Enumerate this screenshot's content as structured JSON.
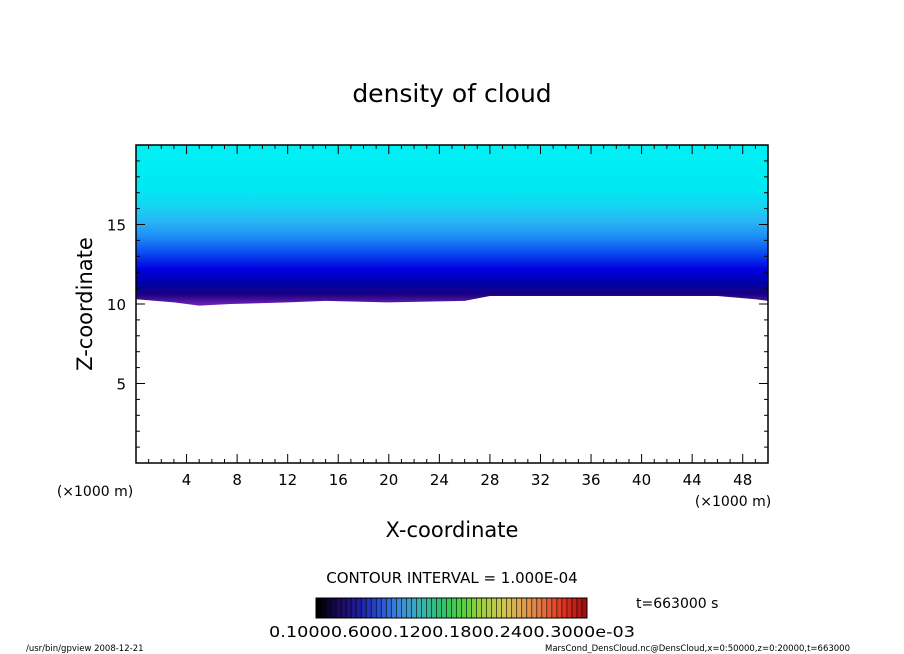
{
  "chart_data": {
    "type": "heatmap",
    "title": "density of cloud",
    "xlabel": "X-coordinate",
    "ylabel": "Z-coordinate",
    "x_unit": "(×1000 m)",
    "y_unit": "(×1000 m)",
    "xlim": [
      0,
      50
    ],
    "ylim": [
      0,
      20
    ],
    "x_ticks": [
      4,
      8,
      12,
      16,
      20,
      24,
      28,
      32,
      36,
      40,
      44,
      48
    ],
    "x_tick_labels": [
      "4",
      "8",
      "12",
      "16",
      "20",
      "24",
      "28",
      "32",
      "36",
      "40",
      "44",
      "48"
    ],
    "y_ticks": [
      5,
      10,
      15
    ],
    "y_tick_labels": [
      "5",
      "10",
      "15"
    ],
    "cloud_base": [
      {
        "x": 0,
        "z": 10.3
      },
      {
        "x": 3,
        "z": 10.1
      },
      {
        "x": 5,
        "z": 9.9
      },
      {
        "x": 7.5,
        "z": 10.0
      },
      {
        "x": 12,
        "z": 10.1
      },
      {
        "x": 15,
        "z": 10.2
      },
      {
        "x": 20,
        "z": 10.1
      },
      {
        "x": 26,
        "z": 10.2
      },
      {
        "x": 28,
        "z": 10.5
      },
      {
        "x": 40,
        "z": 10.5
      },
      {
        "x": 46,
        "z": 10.5
      },
      {
        "x": 49,
        "z": 10.3
      },
      {
        "x": 50,
        "z": 10.2
      }
    ],
    "profile": [
      {
        "z": 10.0,
        "color": "#6a1fb0"
      },
      {
        "z": 10.6,
        "color": "#1a0080"
      },
      {
        "z": 11.3,
        "color": "#0000a8"
      },
      {
        "z": 12.2,
        "color": "#0000e0"
      },
      {
        "z": 13.2,
        "color": "#0a4cf0"
      },
      {
        "z": 14.2,
        "color": "#1e8cf5"
      },
      {
        "z": 15.2,
        "color": "#28b6f5"
      },
      {
        "z": 16.2,
        "color": "#14d6f2"
      },
      {
        "z": 17.2,
        "color": "#00e8f2"
      },
      {
        "z": 20.0,
        "color": "#00f0f4"
      }
    ],
    "contour_interval_text": "CONTOUR INTERVAL = 1.000E-04",
    "colorbar_colors": [
      "#000000",
      "#1a0a5a",
      "#1e1ea0",
      "#2850d0",
      "#3c8cdc",
      "#3cb4b4",
      "#30c070",
      "#50d040",
      "#a0d040",
      "#d0c850",
      "#e0a050",
      "#e07040",
      "#e03020",
      "#a01010"
    ],
    "colorbar_label_text": "0.10000.6000.1200.1800.2400.3000e-03",
    "time_label": "t=663000 s"
  },
  "footer": {
    "left": "/usr/bin/gpview 2008-12-21",
    "right": "MarsCond_DensCloud.nc@DensCloud,x=0:50000,z=0:20000,t=663000"
  }
}
